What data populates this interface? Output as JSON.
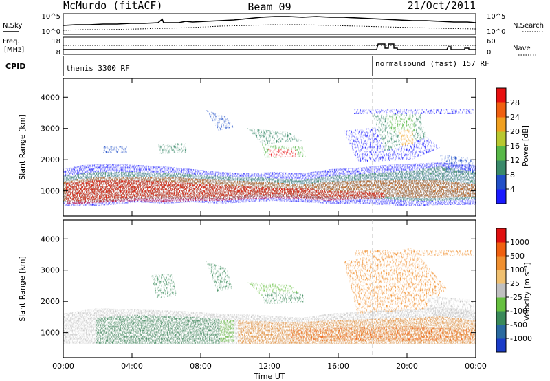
{
  "header": {
    "station": "McMurdo (fitACF)",
    "beam": "Beam 09",
    "date": "21/Oct/2011"
  },
  "noise_panel": {
    "left_label": "N.Sky",
    "right_label": "N.Search",
    "left_ticks": [
      "10^5",
      "10^0"
    ],
    "right_ticks": [
      "10^5",
      "10^0"
    ]
  },
  "freq_panel": {
    "left_label_line1": "Freq.",
    "left_label_line2": "[MHz]",
    "right_label": "Nave",
    "left_ticks": [
      "18",
      "8"
    ],
    "right_ticks": [
      "60",
      "0"
    ]
  },
  "cpid": {
    "label": "CPID",
    "segments": [
      {
        "name": "themis 3300 RF",
        "start_hour": 0
      },
      {
        "name": "normalsound (fast) 157 RF",
        "start_hour": 18
      }
    ]
  },
  "chart_data": [
    {
      "type": "heatmap",
      "name": "power",
      "ylabel": "Slant Range [km]",
      "ylim": [
        200,
        4600
      ],
      "yticks": [
        "1000",
        "2000",
        "3000",
        "4000"
      ],
      "xlim": [
        0,
        24
      ],
      "colorbar_label": "Power [dB]",
      "colorbar_ticks": [
        "28",
        "24",
        "20",
        "16",
        "12",
        "8",
        "4"
      ],
      "colors": [
        "#1a1aff",
        "#2250c8",
        "#3a8a6a",
        "#58b848",
        "#b8c830",
        "#f0a020",
        "#f06010",
        "#e81010"
      ]
    },
    {
      "type": "heatmap",
      "name": "velocity",
      "ylabel": "Slant Range [km]",
      "ylim": [
        200,
        4600
      ],
      "yticks": [
        "1000",
        "2000",
        "3000",
        "4000"
      ],
      "xlim": [
        0,
        24
      ],
      "xticks": [
        "00:00",
        "04:00",
        "08:00",
        "12:00",
        "16:00",
        "20:00",
        "00:00"
      ],
      "xlabel": "Time UT",
      "colorbar_label": "Velocity [m s⁻¹]",
      "colorbar_ticks": [
        "1000",
        "500",
        "100",
        "25",
        "-25",
        "-100",
        "-500",
        "-1000"
      ],
      "colors": [
        "#1a3cc8",
        "#2a6aa0",
        "#3a8a5a",
        "#66c040",
        "#c0c0c0",
        "#f0c070",
        "#f09030",
        "#f06010",
        "#e01010"
      ]
    }
  ]
}
